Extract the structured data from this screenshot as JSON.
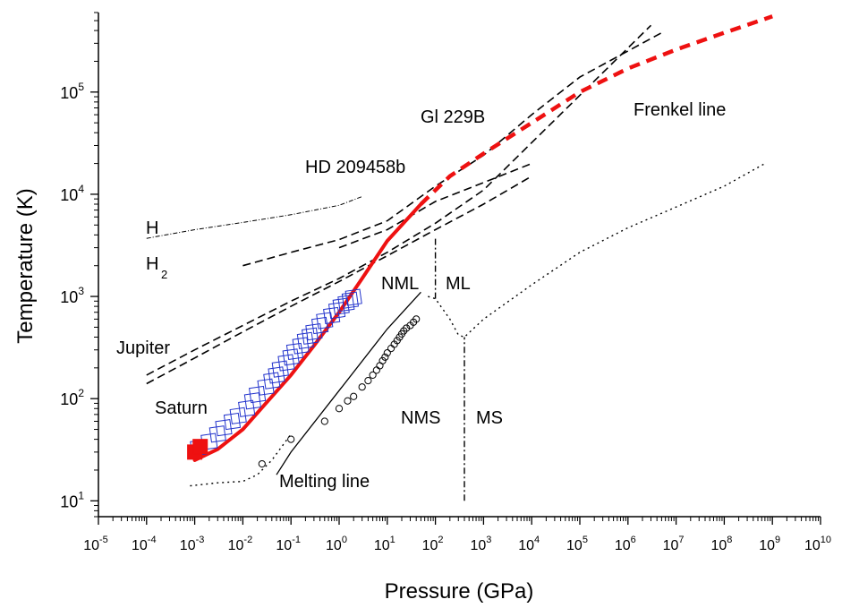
{
  "chart_data": {
    "type": "line",
    "title": "",
    "xlabel": "Pressure (GPa)",
    "ylabel": "Temperature (K)",
    "x_scale": "log",
    "y_scale": "log",
    "xlim": [
      1e-05,
      10000000000.0
    ],
    "ylim": [
      7,
      600000
    ],
    "grid": false,
    "x_ticks": [
      {
        "base": "10",
        "exp": "-5"
      },
      {
        "base": "10",
        "exp": "-4"
      },
      {
        "base": "10",
        "exp": "-3"
      },
      {
        "base": "10",
        "exp": "-2"
      },
      {
        "base": "10",
        "exp": "-1"
      },
      {
        "base": "10",
        "exp": "0"
      },
      {
        "base": "10",
        "exp": "1"
      },
      {
        "base": "10",
        "exp": "2"
      },
      {
        "base": "10",
        "exp": "3"
      },
      {
        "base": "10",
        "exp": "4"
      },
      {
        "base": "10",
        "exp": "5"
      },
      {
        "base": "10",
        "exp": "6"
      },
      {
        "base": "10",
        "exp": "7"
      },
      {
        "base": "10",
        "exp": "8"
      },
      {
        "base": "10",
        "exp": "9"
      },
      {
        "base": "10",
        "exp": "10"
      }
    ],
    "y_ticks": [
      {
        "base": "10",
        "exp": "1"
      },
      {
        "base": "10",
        "exp": "2"
      },
      {
        "base": "10",
        "exp": "3"
      },
      {
        "base": "10",
        "exp": "4"
      },
      {
        "base": "10",
        "exp": "5"
      }
    ],
    "labels": {
      "h": "H",
      "h2": "H",
      "h2_sub": "2",
      "jupiter": "Jupiter",
      "saturn": "Saturn",
      "hd": "HD 209458b",
      "gl": "Gl 229B",
      "frenkel": "Frenkel line",
      "nml": "NML",
      "ml": "ML",
      "nms": "NMS",
      "ms": "MS",
      "melting": "Melting line"
    },
    "colors": {
      "frenkel": "#ee1111",
      "blue_markers": "#2233cc",
      "black": "#000000"
    },
    "series": [
      {
        "style": "dashdot-thin",
        "x": [
          0.0001,
          0.001,
          0.01,
          0.1,
          1,
          3
        ],
        "y": [
          3700,
          4500,
          5300,
          6300,
          7800,
          9500
        ]
      },
      {
        "style": "dashed-black",
        "x": [
          0.0001,
          0.001,
          0.01,
          0.1,
          1,
          10,
          100,
          1000,
          3000000
        ],
        "y": [
          170,
          300,
          520,
          900,
          1500,
          2700,
          5200,
          11000,
          450000
        ]
      },
      {
        "style": "dashed-black",
        "x": [
          0.0001,
          0.001,
          0.01,
          0.1,
          1,
          10,
          100,
          1000,
          10000
        ],
        "y": [
          140,
          250,
          450,
          800,
          1400,
          2500,
          4500,
          8000,
          15000
        ]
      },
      {
        "style": "dashed-black",
        "x": [
          0.01,
          0.1,
          1,
          10,
          100,
          1000,
          10000,
          100000,
          5000000
        ],
        "y": [
          2000,
          2700,
          3600,
          5500,
          12000,
          24000,
          60000,
          140000,
          380000
        ]
      },
      {
        "style": "dashed-black",
        "x": [
          1,
          10,
          100,
          1000,
          10000
        ],
        "y": [
          3000,
          4500,
          8500,
          13000,
          20000
        ]
      },
      {
        "style": "frenkel-solid",
        "x": [
          0.001,
          0.003,
          0.01,
          0.03,
          0.1,
          0.3,
          1,
          3,
          10,
          50
        ],
        "y": [
          25,
          32,
          50,
          90,
          170,
          330,
          700,
          1500,
          3500,
          8000
        ]
      },
      {
        "style": "frenkel-dashed",
        "x": [
          50,
          200,
          1000,
          10000,
          100000,
          1000000,
          10000000,
          100000000,
          1000000000
        ],
        "y": [
          8000,
          15000,
          25000,
          50000,
          100000,
          170000,
          260000,
          380000,
          550000
        ]
      },
      {
        "style": "dotted",
        "x": [
          0.0008,
          0.003,
          0.01,
          0.02,
          0.04,
          0.1
        ],
        "y": [
          14,
          15,
          15.5,
          18,
          25,
          45
        ]
      },
      {
        "style": "solid-black-thin",
        "x": [
          0.05,
          0.1,
          1,
          10,
          50
        ],
        "y": [
          18,
          30,
          120,
          480,
          1100
        ]
      },
      {
        "style": "dotted",
        "x": [
          70,
          100,
          200,
          300,
          400,
          1000,
          10000,
          100000,
          1000000,
          10000000,
          100000000,
          700000000
        ],
        "y": [
          1000,
          950,
          600,
          420,
          400,
          600,
          1300,
          2700,
          4700,
          7500,
          12000,
          20000
        ]
      },
      {
        "style": "dashdot",
        "x": [
          100,
          100
        ],
        "y": [
          950,
          3800
        ]
      },
      {
        "style": "dashdot",
        "x": [
          400,
          400
        ],
        "y": [
          10,
          400
        ]
      },
      {
        "style": "open-circles",
        "x": [
          0.025,
          0.1,
          0.5,
          1,
          1.5,
          2,
          3,
          4,
          5,
          6,
          7,
          8,
          9,
          10,
          12,
          14,
          16,
          18,
          20,
          22,
          25,
          30,
          35,
          40
        ],
        "y": [
          23,
          40,
          60,
          80,
          95,
          105,
          130,
          150,
          170,
          190,
          210,
          235,
          255,
          280,
          310,
          340,
          370,
          400,
          430,
          460,
          490,
          520,
          560,
          600
        ]
      },
      {
        "style": "blue-squares",
        "x": [
          0.0012,
          0.002,
          0.003,
          0.004,
          0.006,
          0.008,
          0.012,
          0.016,
          0.02,
          0.03,
          0.04,
          0.05,
          0.06,
          0.08,
          0.1,
          0.12,
          0.16,
          0.2,
          0.25,
          0.3,
          0.4,
          0.5,
          0.7,
          0.9,
          1.1,
          1.4,
          1.7,
          2.0
        ],
        "y": [
          33,
          38,
          45,
          52,
          60,
          68,
          80,
          95,
          110,
          130,
          150,
          170,
          195,
          225,
          255,
          290,
          330,
          370,
          410,
          450,
          520,
          580,
          650,
          730,
          800,
          860,
          920,
          980
        ]
      },
      {
        "style": "red-squares",
        "x": [
          0.001,
          0.0013
        ],
        "y": [
          30,
          34
        ]
      }
    ]
  }
}
